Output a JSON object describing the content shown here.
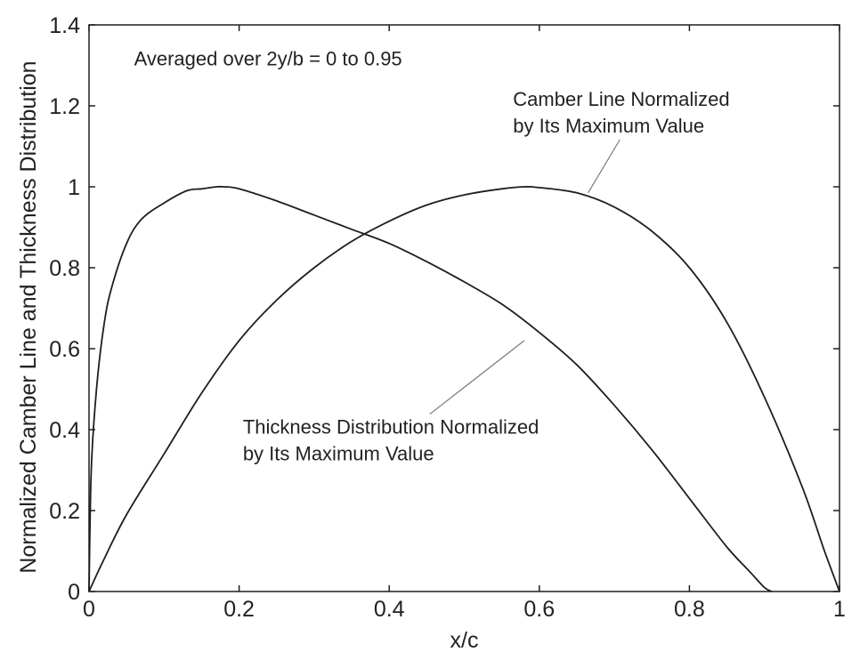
{
  "chart_data": {
    "type": "line",
    "title": "",
    "xlabel": "x/c",
    "ylabel": "Normalized Camber Line and Thickness Distribution",
    "xlim": [
      0,
      1
    ],
    "ylim": [
      0,
      1.4
    ],
    "grid": false,
    "x_ticks": [
      0,
      0.2,
      0.4,
      0.6,
      0.8,
      1
    ],
    "x_tick_labels": [
      "0",
      "0.2",
      "0.4",
      "0.6",
      "0.8",
      "1"
    ],
    "y_ticks": [
      0,
      0.2,
      0.4,
      0.6,
      0.8,
      1,
      1.2,
      1.4
    ],
    "y_tick_labels": [
      "0",
      "0.2",
      "0.4",
      "0.6",
      "0.8",
      "1",
      "1.2",
      "1.4"
    ],
    "series": [
      {
        "key": "thickness",
        "x": [
          0,
          0.003,
          0.01,
          0.02,
          0.03,
          0.05,
          0.07,
          0.1,
          0.13,
          0.15,
          0.17,
          0.18,
          0.2,
          0.25,
          0.3,
          0.35,
          0.4,
          0.45,
          0.5,
          0.55,
          0.6,
          0.65,
          0.7,
          0.75,
          0.8,
          0.85,
          0.88,
          0.9,
          0.91
        ],
        "y": [
          0,
          0.3,
          0.5,
          0.66,
          0.75,
          0.86,
          0.92,
          0.96,
          0.99,
          0.995,
          1.0,
          1.0,
          0.995,
          0.965,
          0.93,
          0.895,
          0.86,
          0.815,
          0.765,
          0.71,
          0.64,
          0.56,
          0.46,
          0.35,
          0.23,
          0.11,
          0.05,
          0.01,
          0
        ]
      },
      {
        "key": "camber",
        "x": [
          0,
          0.02,
          0.05,
          0.1,
          0.15,
          0.2,
          0.25,
          0.3,
          0.35,
          0.4,
          0.45,
          0.5,
          0.55,
          0.58,
          0.6,
          0.65,
          0.7,
          0.75,
          0.8,
          0.85,
          0.9,
          0.95,
          0.98,
          1.0
        ],
        "y": [
          0,
          0.08,
          0.19,
          0.34,
          0.49,
          0.62,
          0.72,
          0.8,
          0.865,
          0.915,
          0.955,
          0.98,
          0.995,
          1.0,
          0.998,
          0.985,
          0.95,
          0.89,
          0.8,
          0.665,
          0.48,
          0.26,
          0.1,
          0
        ]
      }
    ],
    "annotations": [
      {
        "key": "range",
        "lines": [
          "Averaged over 2y/b = 0 to 0.95"
        ],
        "x": 0.06,
        "y": 1.3
      },
      {
        "key": "camber",
        "lines": [
          "Camber Line Normalized",
          "by Its Maximum Value"
        ],
        "x": 0.565,
        "y": 1.2,
        "arrow_to": [
          0.665,
          0.985
        ]
      },
      {
        "key": "thickness",
        "lines": [
          "Thickness Distribution Normalized",
          "by Its Maximum Value"
        ],
        "x": 0.205,
        "y": 0.39,
        "arrow_to": [
          0.58,
          0.62
        ]
      }
    ],
    "colors": {
      "line": "#1e1e1e",
      "axes": "#1e1e1e",
      "background": "#ffffff"
    }
  }
}
